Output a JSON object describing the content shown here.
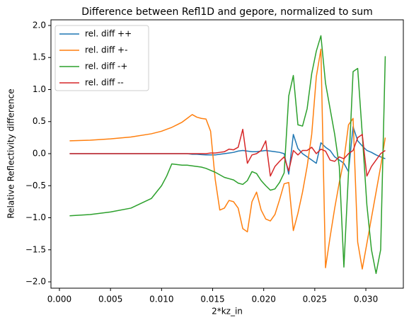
{
  "chart_data": {
    "type": "line",
    "title": "Difference between Refl1D and gepore, normalized to sum",
    "xlabel": "2*kz_in",
    "ylabel": "Relative Reflectivity difference",
    "x": [
      0.001,
      0.003,
      0.005,
      0.007,
      0.009,
      0.01,
      0.0105,
      0.011,
      0.0115,
      0.012,
      0.0125,
      0.013,
      0.01345,
      0.0139,
      0.01435,
      0.0148,
      0.01525,
      0.0157,
      0.01615,
      0.0166,
      0.01705,
      0.0175,
      0.01795,
      0.0184,
      0.01885,
      0.0193,
      0.01975,
      0.0202,
      0.02065,
      0.0211,
      0.02155,
      0.022,
      0.02245,
      0.0229,
      0.02335,
      0.0238,
      0.02425,
      0.0247,
      0.02515,
      0.0256,
      0.02605,
      0.0265,
      0.02695,
      0.0274,
      0.02785,
      0.0283,
      0.02875,
      0.0292,
      0.02965,
      0.0301,
      0.03055,
      0.031,
      0.03145,
      0.0319
    ],
    "series": [
      {
        "name": "rel. diff ++",
        "color": "#1f77b4",
        "values": [
          0,
          0,
          0,
          0,
          0,
          0,
          0,
          0,
          0,
          0,
          0,
          -0.01,
          -0.01,
          -0.015,
          -0.02,
          -0.02,
          -0.02,
          -0.01,
          0.0,
          0.01,
          0.02,
          0.04,
          0.05,
          0.04,
          0.03,
          0.03,
          0.04,
          0.05,
          0.04,
          0.03,
          0.02,
          0.0,
          -0.32,
          0.3,
          0.08,
          0.0,
          -0.05,
          -0.1,
          -0.15,
          0.17,
          0.1,
          0.05,
          -0.05,
          -0.1,
          -0.15,
          -0.28,
          0.42,
          0.2,
          0.12,
          0.05,
          0.02,
          -0.02,
          -0.05,
          -0.08
        ]
      },
      {
        "name": "rel. diff +-",
        "color": "#ff7f0e",
        "values": [
          0.2,
          0.21,
          0.23,
          0.26,
          0.31,
          0.35,
          0.38,
          0.41,
          0.45,
          0.49,
          0.55,
          0.61,
          0.57,
          0.55,
          0.54,
          0.35,
          -0.4,
          -0.88,
          -0.85,
          -0.73,
          -0.75,
          -0.85,
          -1.17,
          -1.22,
          -0.75,
          -0.6,
          -0.88,
          -1.02,
          -1.05,
          -0.95,
          -0.72,
          -0.47,
          -0.45,
          -1.2,
          -0.93,
          -0.6,
          -0.2,
          0.3,
          1.2,
          1.63,
          -1.78,
          -1.3,
          -0.85,
          -0.45,
          -0.1,
          0.45,
          0.55,
          -1.38,
          -1.8,
          -1.4,
          -1.0,
          -0.6,
          -0.2,
          0.25
        ]
      },
      {
        "name": "rel. diff -+",
        "color": "#2ca02c",
        "values": [
          -0.97,
          -0.95,
          -0.91,
          -0.85,
          -0.7,
          -0.5,
          -0.35,
          -0.16,
          -0.17,
          -0.18,
          -0.18,
          -0.19,
          -0.2,
          -0.21,
          -0.23,
          -0.26,
          -0.29,
          -0.33,
          -0.37,
          -0.39,
          -0.41,
          -0.46,
          -0.48,
          -0.42,
          -0.28,
          -0.31,
          -0.42,
          -0.5,
          -0.57,
          -0.55,
          -0.45,
          -0.3,
          0.9,
          1.22,
          0.45,
          0.43,
          0.7,
          1.25,
          1.6,
          1.84,
          1.1,
          0.7,
          0.3,
          -0.2,
          -1.77,
          -0.3,
          1.28,
          1.33,
          0.3,
          -0.8,
          -1.5,
          -1.87,
          -1.5,
          1.52
        ]
      },
      {
        "name": "rel. diff --",
        "color": "#d62728",
        "values": [
          0,
          0,
          0,
          0,
          0,
          0,
          0,
          0,
          0,
          0,
          0,
          0.0,
          0.0,
          0.0,
          0.0,
          0.01,
          0.01,
          0.02,
          0.03,
          0.07,
          0.06,
          0.1,
          0.38,
          -0.15,
          -0.02,
          0.0,
          0.05,
          0.2,
          -0.35,
          -0.2,
          -0.12,
          -0.05,
          -0.27,
          0.05,
          -0.02,
          0.05,
          0.05,
          0.1,
          0.0,
          0.07,
          0.04,
          -0.1,
          -0.12,
          -0.05,
          -0.08,
          0.0,
          0.05,
          0.25,
          0.3,
          -0.35,
          -0.2,
          -0.1,
          0.0,
          0.05
        ]
      }
    ],
    "xlim": [
      -0.00083,
      0.03367
    ],
    "ylim": [
      -2.099,
      2.088
    ],
    "xticks": [
      {
        "value": 0,
        "label": "0.000"
      },
      {
        "value": 0.005,
        "label": "0.005"
      },
      {
        "value": 0.01,
        "label": "0.010"
      },
      {
        "value": 0.015,
        "label": "0.015"
      },
      {
        "value": 0.02,
        "label": "0.020"
      },
      {
        "value": 0.025,
        "label": "0.025"
      },
      {
        "value": 0.03,
        "label": "0.030"
      }
    ],
    "yticks": [
      {
        "value": -2,
        "label": "−2.0"
      },
      {
        "value": -1.5,
        "label": "−1.5"
      },
      {
        "value": -1,
        "label": "−1.0"
      },
      {
        "value": -0.5,
        "label": "−0.5"
      },
      {
        "value": 0,
        "label": "0.0"
      },
      {
        "value": 0.5,
        "label": "0.5"
      },
      {
        "value": 1,
        "label": "1.0"
      },
      {
        "value": 1.5,
        "label": "1.5"
      },
      {
        "value": 2,
        "label": "2.0"
      }
    ],
    "legend": "upper left"
  }
}
